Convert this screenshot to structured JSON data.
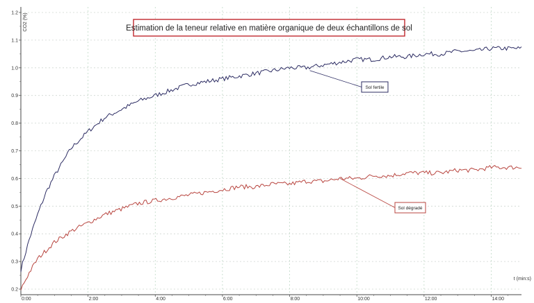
{
  "chart_data": {
    "type": "line",
    "title": "Estimation de la teneur relative en matière organique de deux échantillons de sol",
    "xlabel": "t (min:s)",
    "ylabel": "CO2 (%)",
    "xlim": [
      0,
      14.9
    ],
    "ylim": [
      0.18,
      1.22
    ],
    "grid": true,
    "legend": "none",
    "x_ticks": [
      {
        "value": 0,
        "label": "0:00"
      },
      {
        "value": 2,
        "label": "2:00"
      },
      {
        "value": 4,
        "label": "4:00"
      },
      {
        "value": 6,
        "label": "6:00"
      },
      {
        "value": 8,
        "label": "8:00"
      },
      {
        "value": 10,
        "label": "10:00"
      },
      {
        "value": 12,
        "label": "12:00"
      },
      {
        "value": 14,
        "label": "14:00"
      }
    ],
    "y_ticks": [
      {
        "value": 0.2,
        "label": "0.2"
      },
      {
        "value": 0.3,
        "label": "0.3"
      },
      {
        "value": 0.4,
        "label": "0.4"
      },
      {
        "value": 0.5,
        "label": "0.5"
      },
      {
        "value": 0.6,
        "label": "0.6"
      },
      {
        "value": 0.7,
        "label": "0.7"
      },
      {
        "value": 0.8,
        "label": "0.8"
      },
      {
        "value": 0.9,
        "label": "0.9"
      },
      {
        "value": 1.0,
        "label": "1.0"
      },
      {
        "value": 1.1,
        "label": "1.1"
      },
      {
        "value": 1.2,
        "label": "1.2"
      }
    ],
    "series": [
      {
        "name": "Sol fertile",
        "color": "#2b2b62",
        "x": [
          0,
          0.25,
          0.5,
          0.75,
          1,
          1.5,
          2,
          2.5,
          3,
          3.5,
          4,
          4.5,
          5,
          5.5,
          6,
          6.5,
          7,
          7.5,
          8,
          8.5,
          9,
          9.5,
          10,
          10.5,
          11,
          11.5,
          12,
          12.5,
          13,
          13.5,
          14,
          14.5,
          14.9
        ],
        "y": [
          0.27,
          0.38,
          0.47,
          0.55,
          0.61,
          0.71,
          0.77,
          0.82,
          0.85,
          0.88,
          0.9,
          0.92,
          0.94,
          0.95,
          0.96,
          0.97,
          0.98,
          0.99,
          1.0,
          1.0,
          1.01,
          1.02,
          1.03,
          1.03,
          1.04,
          1.04,
          1.05,
          1.05,
          1.06,
          1.06,
          1.07,
          1.07,
          1.07
        ],
        "annotation": {
          "text": "Sol fertile",
          "x": 8.6,
          "y": 0.99
        }
      },
      {
        "name": "Sol dégradé",
        "color": "#b8453f",
        "x": [
          0,
          0.25,
          0.5,
          0.75,
          1,
          1.5,
          2,
          2.5,
          3,
          3.5,
          4,
          4.5,
          5,
          5.5,
          6,
          6.5,
          7,
          7.5,
          8,
          8.5,
          9,
          9.5,
          10,
          10.5,
          11,
          11.5,
          12,
          12.5,
          13,
          13.5,
          14,
          14.5,
          14.9
        ],
        "y": [
          0.2,
          0.26,
          0.31,
          0.34,
          0.37,
          0.41,
          0.44,
          0.47,
          0.49,
          0.51,
          0.52,
          0.53,
          0.54,
          0.55,
          0.56,
          0.57,
          0.57,
          0.58,
          0.58,
          0.59,
          0.59,
          0.6,
          0.6,
          0.61,
          0.61,
          0.62,
          0.62,
          0.62,
          0.63,
          0.63,
          0.64,
          0.64,
          0.64
        ],
        "annotation": {
          "text": "Sol dégradé",
          "x": 9.5,
          "y": 0.6
        }
      }
    ]
  }
}
